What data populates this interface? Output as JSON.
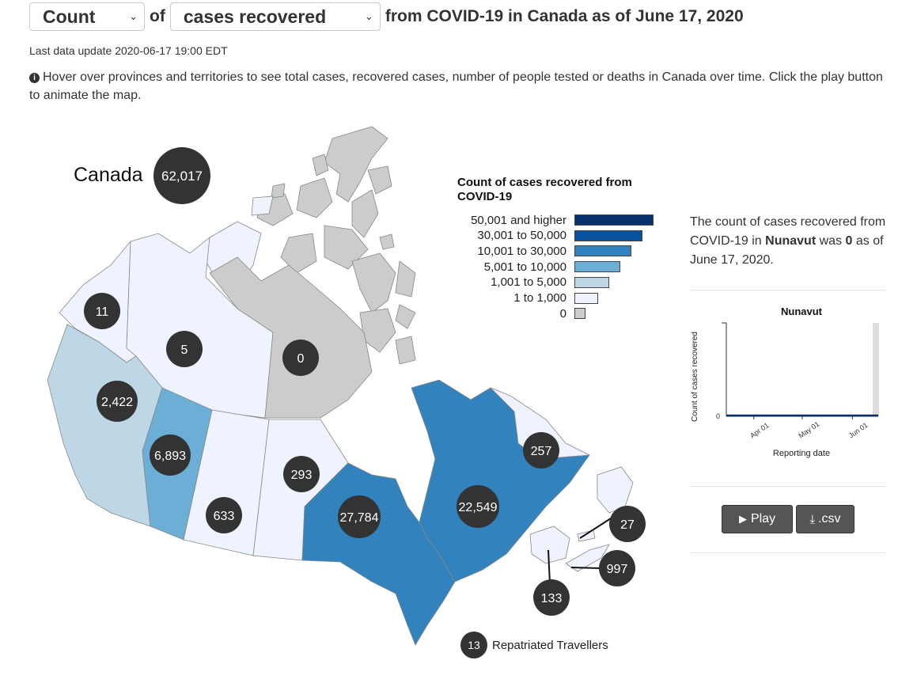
{
  "header": {
    "metric_select": "Count",
    "of_word": "of",
    "category_select": "cases recovered",
    "suffix": "from COVID-19 in Canada as of June 17, 2020"
  },
  "update_text": "Last data update 2020-06-17 19:00 EDT",
  "info_text": "Hover over provinces and territories to see total cases, recovered cases, number of people tested or deaths in Canada over time. Click the play button to animate the map.",
  "map": {
    "country_label": "Canada",
    "country_total": "62,017",
    "provinces": [
      {
        "name": "Yukon",
        "value": "11"
      },
      {
        "name": "Northwest Territories",
        "value": "5"
      },
      {
        "name": "Nunavut",
        "value": "0"
      },
      {
        "name": "British Columbia",
        "value": "2,422"
      },
      {
        "name": "Alberta",
        "value": "6,893"
      },
      {
        "name": "Saskatchewan",
        "value": "633"
      },
      {
        "name": "Manitoba",
        "value": "293"
      },
      {
        "name": "Ontario",
        "value": "27,784"
      },
      {
        "name": "Quebec",
        "value": "22,549"
      },
      {
        "name": "Newfoundland and Labrador",
        "value": "257"
      },
      {
        "name": "Prince Edward Island",
        "value": "27"
      },
      {
        "name": "Nova Scotia",
        "value": "997"
      },
      {
        "name": "New Brunswick",
        "value": "133"
      }
    ],
    "repatriated": {
      "value": "13",
      "label": "Repatriated Travellers"
    }
  },
  "legend": {
    "title": "Count of cases recovered from COVID-19",
    "items": [
      {
        "label": "50,001 and higher",
        "color": "#08306b"
      },
      {
        "label": "30,001 to 50,000",
        "color": "#08519c"
      },
      {
        "label": "10,001 to 30,000",
        "color": "#3182bd"
      },
      {
        "label": "5,001 to 10,000",
        "color": "#6baed6"
      },
      {
        "label": "1,001 to 5,000",
        "color": "#bdd7e7"
      },
      {
        "label": "1 to 1,000",
        "color": "#eff3ff"
      },
      {
        "label": "0",
        "color": "#cccccc"
      }
    ]
  },
  "detail": {
    "text_pre": "The count of cases recovered from COVID-19 in",
    "province": "Nunavut",
    "text_mid": "was",
    "value": "0",
    "text_post": "as of June 17, 2020."
  },
  "chart_data": {
    "type": "line",
    "title": "Nunavut",
    "xlabel": "Reporting date",
    "ylabel": "Count of cases recovered",
    "x_ticks": [
      "Apr 01",
      "May 01",
      "Jun 01"
    ],
    "y_ticks": [
      0
    ],
    "series": [
      {
        "values": [
          0,
          0,
          0,
          0
        ]
      }
    ],
    "x": [
      "2020-03-15",
      "2020-04-01",
      "2020-05-01",
      "2020-06-17"
    ]
  },
  "buttons": {
    "play": "Play",
    "csv": ".csv"
  },
  "colors": {
    "bubble": "#333333",
    "accent": "#3182bd"
  }
}
